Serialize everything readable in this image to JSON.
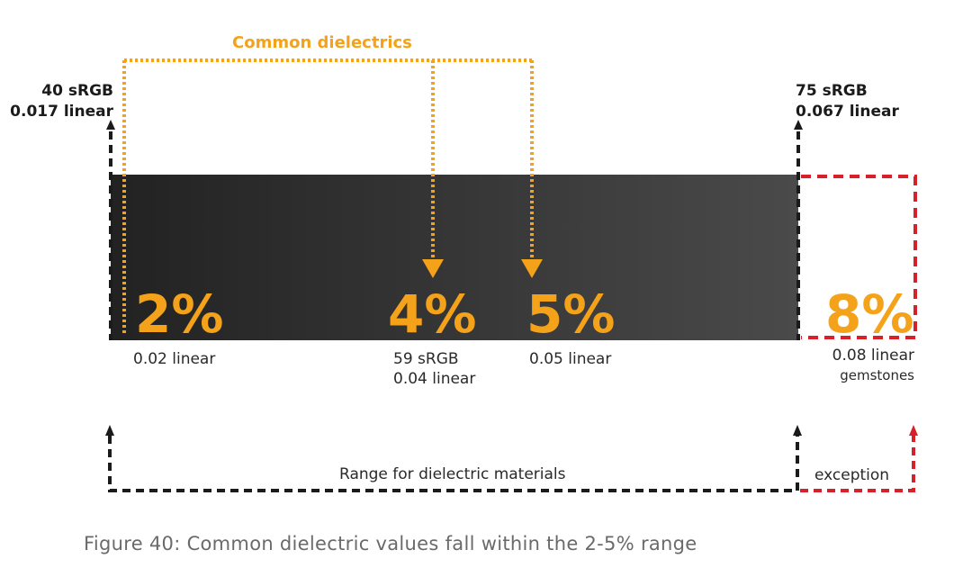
{
  "header": {
    "title": "Common dielectrics"
  },
  "endpoints": {
    "left": {
      "line1": "40 sRGB",
      "line2": "0.017 linear"
    },
    "right": {
      "line1": "75 sRGB",
      "line2": "0.067 linear"
    }
  },
  "markers": [
    {
      "id": "two",
      "percent": "2%",
      "line1": "0.02 linear",
      "line2": ""
    },
    {
      "id": "four",
      "percent": "4%",
      "line1": "59 sRGB",
      "line2": "0.04 linear"
    },
    {
      "id": "five",
      "percent": "5%",
      "line1": "0.05 linear",
      "line2": ""
    },
    {
      "id": "eight",
      "percent": "8%",
      "line1": "0.08 linear",
      "line2": "gemstones"
    }
  ],
  "ranges": {
    "dielectric": "Range for dielectric materials",
    "exception": "exception"
  },
  "caption": "Figure 40: Common dielectric values fall within the 2-5% range",
  "colors": {
    "accent_orange": "#f5a21b",
    "exception_red": "#d6202a",
    "range_black": "#1b1b1b",
    "bar_dark": "#232323",
    "bar_light": "#4a4a4a"
  }
}
